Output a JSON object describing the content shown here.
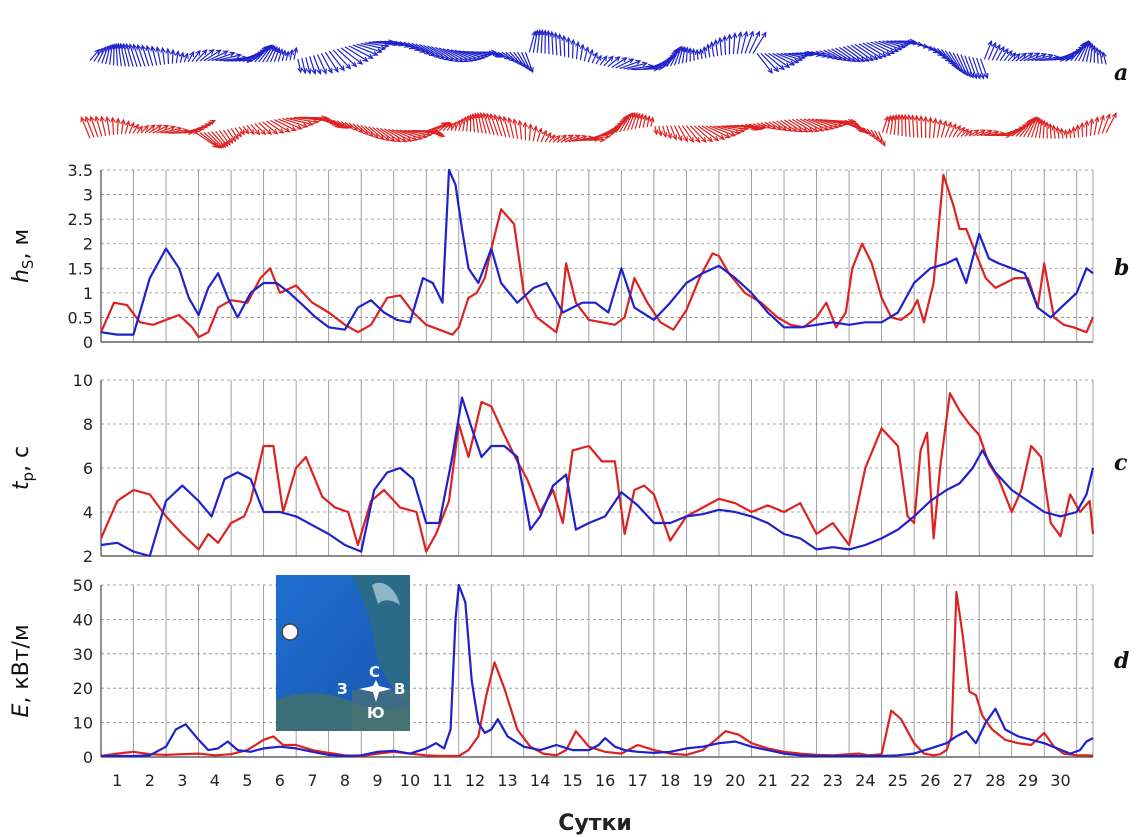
{
  "figure": {
    "panel_letters": [
      "a",
      "b",
      "c",
      "d"
    ],
    "inset": {
      "compass": {
        "n": "С",
        "s": "Ю",
        "w": "З",
        "e": "В"
      }
    }
  },
  "colors": {
    "series_red": "#dd2222",
    "series_blue": "#1f22cc",
    "grid": "#888888",
    "axis": "#555555"
  },
  "chart_data": [
    {
      "type": "quiver",
      "panel": "a",
      "title": "",
      "series": [
        {
          "name": "blue",
          "color": "#1f22cc",
          "note": "wave direction vectors over 30 days"
        },
        {
          "name": "red",
          "color": "#dd2222",
          "note": "wave direction vectors over 30 days"
        }
      ]
    },
    {
      "type": "line",
      "panel": "b",
      "ylabel": "hs, м",
      "ylabel_main": "h",
      "ylabel_sub": "S",
      "ylabel_unit": ", м",
      "ylim": [
        0,
        3.5
      ],
      "yticks": [
        "0",
        "0.5",
        "1",
        "1.5",
        "2",
        "2.5",
        "3",
        "3.5"
      ],
      "series": [
        {
          "name": "red",
          "color": "#dd2222",
          "x": [
            0,
            0.4,
            0.8,
            1.2,
            1.6,
            2.0,
            2.4,
            2.8,
            3.0,
            3.3,
            3.6,
            4.0,
            4.5,
            4.9,
            5.2,
            5.5,
            6.0,
            6.5,
            7.0,
            7.5,
            7.9,
            8.3,
            8.8,
            9.2,
            9.6,
            10.0,
            10.4,
            10.8,
            11.0,
            11.3,
            11.55,
            11.8,
            12.0,
            12.3,
            12.7,
            13.0,
            13.4,
            13.8,
            14.0,
            14.15,
            14.3,
            14.6,
            15.0,
            15.4,
            15.8,
            16.1,
            16.4,
            16.8,
            17.2,
            17.6,
            18.0,
            18.4,
            18.8,
            19.0,
            19.3,
            19.8,
            20.3,
            20.8,
            21.2,
            21.6,
            22.0,
            22.3,
            22.6,
            22.9,
            23.1,
            23.4,
            23.7,
            24.0,
            24.3,
            24.6,
            24.9,
            25.1,
            25.3,
            25.6,
            25.9,
            26.2,
            26.4,
            26.6,
            26.9,
            27.2,
            27.5,
            27.8,
            28.1,
            28.5,
            28.8,
            29.0,
            29.3,
            29.6,
            29.9,
            30.3,
            30.5
          ],
          "values": [
            0.2,
            0.8,
            0.75,
            0.4,
            0.35,
            0.45,
            0.55,
            0.3,
            0.1,
            0.2,
            0.7,
            0.85,
            0.8,
            1.3,
            1.5,
            1.0,
            1.15,
            0.8,
            0.6,
            0.35,
            0.2,
            0.35,
            0.9,
            0.95,
            0.6,
            0.35,
            0.25,
            0.15,
            0.3,
            0.9,
            1.0,
            1.3,
            1.9,
            2.7,
            2.4,
            1.0,
            0.5,
            0.3,
            0.2,
            0.6,
            1.6,
            0.8,
            0.45,
            0.4,
            0.35,
            0.5,
            1.3,
            0.8,
            0.4,
            0.25,
            0.65,
            1.3,
            1.8,
            1.75,
            1.4,
            1.0,
            0.8,
            0.5,
            0.35,
            0.3,
            0.5,
            0.8,
            0.3,
            0.6,
            1.5,
            2.0,
            1.6,
            0.9,
            0.5,
            0.45,
            0.6,
            0.85,
            0.4,
            1.2,
            3.4,
            2.8,
            2.3,
            2.3,
            1.8,
            1.3,
            1.1,
            1.2,
            1.3,
            1.3,
            0.7,
            1.6,
            0.5,
            0.35,
            0.3,
            0.2,
            0.5
          ]
        },
        {
          "name": "blue",
          "color": "#1f22cc",
          "x": [
            0,
            0.5,
            1.0,
            1.5,
            2.0,
            2.4,
            2.7,
            3.0,
            3.3,
            3.6,
            3.9,
            4.2,
            4.6,
            5.0,
            5.4,
            5.8,
            6.2,
            6.6,
            7.0,
            7.5,
            7.9,
            8.3,
            8.7,
            9.1,
            9.5,
            9.9,
            10.2,
            10.5,
            10.7,
            10.9,
            11.1,
            11.3,
            11.6,
            12.0,
            12.3,
            12.8,
            13.3,
            13.7,
            14.2,
            14.8,
            15.2,
            15.6,
            16.0,
            16.4,
            17.0,
            17.5,
            18.0,
            18.5,
            19.0,
            19.5,
            20.0,
            20.5,
            21.0,
            21.5,
            22.0,
            22.5,
            23.0,
            23.5,
            24.0,
            24.5,
            25.0,
            25.5,
            26.0,
            26.3,
            26.6,
            27.0,
            27.3,
            27.6,
            28.0,
            28.4,
            28.8,
            29.2,
            29.6,
            30.0,
            30.3,
            30.5
          ],
          "values": [
            0.2,
            0.15,
            0.15,
            1.3,
            1.9,
            1.5,
            0.9,
            0.55,
            1.1,
            1.4,
            0.9,
            0.5,
            1.0,
            1.2,
            1.2,
            1.0,
            0.75,
            0.5,
            0.3,
            0.25,
            0.7,
            0.85,
            0.6,
            0.45,
            0.4,
            1.3,
            1.2,
            0.8,
            3.5,
            3.2,
            2.3,
            1.5,
            1.2,
            1.9,
            1.2,
            0.8,
            1.1,
            1.2,
            0.6,
            0.8,
            0.8,
            0.6,
            1.5,
            0.7,
            0.45,
            0.8,
            1.2,
            1.4,
            1.55,
            1.3,
            1.0,
            0.6,
            0.3,
            0.3,
            0.35,
            0.4,
            0.35,
            0.4,
            0.4,
            0.6,
            1.2,
            1.5,
            1.6,
            1.7,
            1.2,
            2.2,
            1.7,
            1.6,
            1.5,
            1.4,
            0.7,
            0.5,
            0.75,
            1.0,
            1.5,
            1.4
          ]
        }
      ]
    },
    {
      "type": "line",
      "panel": "c",
      "ylabel": "tp, с",
      "ylabel_main": "t",
      "ylabel_sub": "p",
      "ylabel_unit": ", с",
      "ylim": [
        2,
        10
      ],
      "yticks": [
        "2",
        "4",
        "6",
        "8",
        "10"
      ],
      "series": [
        {
          "name": "red",
          "color": "#dd2222",
          "x": [
            0,
            0.5,
            1.0,
            1.5,
            2.0,
            2.5,
            3.0,
            3.3,
            3.6,
            4.0,
            4.4,
            4.6,
            5.0,
            5.3,
            5.6,
            6.0,
            6.3,
            6.8,
            7.2,
            7.6,
            7.9,
            8.3,
            8.7,
            9.2,
            9.7,
            10.0,
            10.3,
            10.7,
            11.0,
            11.3,
            11.7,
            12.0,
            12.4,
            12.8,
            13.1,
            13.5,
            13.9,
            14.2,
            14.5,
            15.0,
            15.4,
            15.8,
            16.1,
            16.4,
            16.7,
            17.0,
            17.5,
            18.0,
            18.5,
            19.0,
            19.5,
            20.0,
            20.5,
            21.0,
            21.5,
            22.0,
            22.5,
            23.0,
            23.5,
            24.0,
            24.5,
            24.8,
            25.0,
            25.2,
            25.4,
            25.6,
            25.8,
            26.1,
            26.4,
            26.7,
            27.0,
            27.3,
            27.6,
            28.0,
            28.3,
            28.6,
            28.9,
            29.2,
            29.5,
            29.8,
            30.1,
            30.4,
            30.5
          ],
          "values": [
            2.8,
            4.5,
            5.0,
            4.8,
            3.8,
            3.0,
            2.3,
            3.0,
            2.6,
            3.5,
            3.8,
            4.5,
            7.0,
            7.0,
            4.0,
            6.0,
            6.5,
            4.7,
            4.2,
            4.0,
            2.5,
            4.5,
            5.0,
            4.2,
            4.0,
            2.2,
            3.0,
            4.5,
            8.0,
            6.5,
            9.0,
            8.8,
            7.5,
            6.3,
            5.5,
            4.0,
            5.0,
            3.5,
            6.8,
            7.0,
            6.3,
            6.3,
            3.0,
            5.0,
            5.2,
            4.8,
            2.7,
            3.8,
            4.2,
            4.6,
            4.4,
            4.0,
            4.3,
            4.0,
            4.4,
            3.0,
            3.5,
            2.5,
            6.0,
            7.8,
            7.0,
            3.8,
            3.5,
            6.8,
            7.6,
            2.8,
            6.0,
            9.4,
            8.6,
            8.0,
            7.5,
            6.2,
            5.5,
            4.0,
            5.0,
            7.0,
            6.5,
            3.5,
            2.9,
            4.8,
            4.0,
            4.5,
            3.0
          ]
        },
        {
          "name": "blue",
          "color": "#1f22cc",
          "x": [
            0,
            0.5,
            1.0,
            1.5,
            2.0,
            2.5,
            3.0,
            3.4,
            3.8,
            4.2,
            4.6,
            5.0,
            5.5,
            6.0,
            6.5,
            7.0,
            7.5,
            8.0,
            8.4,
            8.8,
            9.2,
            9.6,
            10.0,
            10.4,
            10.8,
            11.1,
            11.4,
            11.7,
            12.0,
            12.4,
            12.8,
            13.2,
            13.5,
            13.9,
            14.3,
            14.6,
            15.0,
            15.5,
            16.0,
            16.5,
            17.0,
            17.5,
            18.0,
            18.5,
            19.0,
            19.5,
            20.0,
            20.5,
            21.0,
            21.5,
            22.0,
            22.5,
            23.0,
            23.5,
            24.0,
            24.5,
            25.0,
            25.5,
            26.0,
            26.4,
            26.8,
            27.1,
            27.5,
            28.0,
            28.5,
            29.0,
            29.5,
            30.0,
            30.3,
            30.5
          ],
          "values": [
            2.5,
            2.6,
            2.2,
            2.0,
            4.5,
            5.2,
            4.5,
            3.8,
            5.5,
            5.8,
            5.5,
            4.0,
            4.0,
            3.8,
            3.4,
            3.0,
            2.5,
            2.2,
            5.0,
            5.8,
            6.0,
            5.5,
            3.5,
            3.5,
            6.5,
            9.2,
            7.8,
            6.5,
            7.0,
            7.0,
            6.5,
            3.2,
            3.8,
            5.2,
            5.7,
            3.2,
            3.5,
            3.8,
            4.9,
            4.3,
            3.5,
            3.5,
            3.8,
            3.9,
            4.1,
            4.0,
            3.8,
            3.5,
            3.0,
            2.8,
            2.3,
            2.4,
            2.3,
            2.5,
            2.8,
            3.2,
            3.8,
            4.5,
            5.0,
            5.3,
            6.0,
            6.8,
            5.8,
            5.0,
            4.5,
            4.0,
            3.8,
            4.0,
            4.8,
            6.0
          ]
        }
      ]
    },
    {
      "type": "line",
      "panel": "d",
      "ylabel": "E, кВт/м",
      "ylabel_main": "E",
      "ylabel_unit": ", кВт/м",
      "ylim": [
        0,
        50
      ],
      "yticks": [
        "0",
        "10",
        "20",
        "30",
        "40",
        "50"
      ],
      "xlabel": "Сутки",
      "xticks": [
        "1",
        "2",
        "3",
        "4",
        "5",
        "6",
        "7",
        "8",
        "9",
        "10",
        "11",
        "12",
        "13",
        "14",
        "15",
        "16",
        "17",
        "18",
        "19",
        "20",
        "21",
        "22",
        "23",
        "24",
        "25",
        "26",
        "27",
        "28",
        "29",
        "30"
      ],
      "series": [
        {
          "name": "red",
          "color": "#dd2222",
          "x": [
            0,
            0.5,
            1.0,
            1.5,
            2.0,
            2.5,
            3.0,
            3.5,
            4.0,
            4.5,
            5.0,
            5.3,
            5.6,
            6.0,
            6.5,
            7.0,
            7.5,
            8.0,
            8.5,
            9.0,
            9.5,
            10.0,
            10.5,
            11.0,
            11.3,
            11.6,
            11.85,
            12.1,
            12.4,
            12.8,
            13.2,
            13.6,
            14.0,
            14.3,
            14.6,
            15.0,
            15.5,
            16.0,
            16.5,
            17.0,
            17.5,
            18.0,
            18.5,
            18.9,
            19.2,
            19.6,
            20.0,
            20.5,
            21.0,
            21.5,
            22.0,
            22.5,
            23.0,
            23.3,
            23.6,
            24.0,
            24.3,
            24.6,
            25.0,
            25.3,
            25.6,
            25.8,
            26.0,
            26.15,
            26.3,
            26.5,
            26.7,
            26.9,
            27.1,
            27.4,
            27.8,
            28.2,
            28.6,
            29.0,
            29.3,
            29.6,
            30.0,
            30.3,
            30.5
          ],
          "values": [
            0.3,
            1.0,
            1.5,
            0.8,
            0.6,
            0.8,
            1.0,
            0.5,
            0.8,
            2.0,
            5.0,
            6.0,
            3.5,
            3.5,
            2.0,
            1.2,
            0.5,
            0.3,
            1.0,
            1.5,
            1.0,
            0.5,
            0.3,
            0.3,
            2.0,
            6.0,
            18.0,
            27.5,
            20.0,
            8.0,
            3.0,
            1.0,
            0.5,
            2.0,
            7.5,
            3.0,
            1.5,
            1.0,
            3.5,
            2.0,
            1.0,
            0.6,
            2.0,
            5.0,
            7.5,
            6.5,
            4.0,
            2.5,
            1.5,
            1.0,
            0.6,
            0.5,
            0.8,
            1.0,
            0.5,
            0.8,
            13.5,
            11.0,
            4.0,
            1.0,
            0.5,
            0.8,
            2.0,
            6.0,
            48.0,
            35.0,
            19.0,
            18.0,
            12.0,
            8.0,
            5.0,
            4.0,
            3.5,
            7.0,
            3.0,
            1.0,
            0.5,
            0.5,
            0.4
          ]
        },
        {
          "name": "blue",
          "color": "#1f22cc",
          "x": [
            0,
            0.5,
            1.0,
            1.5,
            2.0,
            2.3,
            2.6,
            3.0,
            3.3,
            3.6,
            3.9,
            4.2,
            4.6,
            5.0,
            5.5,
            6.0,
            6.5,
            7.0,
            7.5,
            8.0,
            8.5,
            9.0,
            9.5,
            10.0,
            10.3,
            10.55,
            10.75,
            10.9,
            11.0,
            11.2,
            11.4,
            11.6,
            11.8,
            12.0,
            12.2,
            12.5,
            13.0,
            13.5,
            14.0,
            14.5,
            15.0,
            15.3,
            15.5,
            15.8,
            16.1,
            16.5,
            17.0,
            17.5,
            18.0,
            18.5,
            19.0,
            19.5,
            20.0,
            20.5,
            21.0,
            21.5,
            22.0,
            22.5,
            23.0,
            23.5,
            24.0,
            24.5,
            25.0,
            25.5,
            26.0,
            26.3,
            26.6,
            26.9,
            27.2,
            27.5,
            27.8,
            28.2,
            28.6,
            29.0,
            29.4,
            29.8,
            30.1,
            30.3,
            30.5
          ],
          "values": [
            0.3,
            0.3,
            0.3,
            0.5,
            3.0,
            8.0,
            9.5,
            5.0,
            2.0,
            2.5,
            4.5,
            2.0,
            1.5,
            2.5,
            3.0,
            2.5,
            1.5,
            0.6,
            0.3,
            0.5,
            1.5,
            1.8,
            1.0,
            2.5,
            4.0,
            2.5,
            8.0,
            40.0,
            50.0,
            45.0,
            22.0,
            10.0,
            7.0,
            8.0,
            11.0,
            6.0,
            3.0,
            2.0,
            3.5,
            2.0,
            2.0,
            3.5,
            5.5,
            3.0,
            2.0,
            1.5,
            1.2,
            1.5,
            2.5,
            3.0,
            4.0,
            4.5,
            3.0,
            2.0,
            1.0,
            0.5,
            0.3,
            0.3,
            0.3,
            0.3,
            0.3,
            0.5,
            1.0,
            2.5,
            4.0,
            6.0,
            7.5,
            4.0,
            10.0,
            14.0,
            8.0,
            6.0,
            5.0,
            4.0,
            2.5,
            1.0,
            2.0,
            4.5,
            5.5
          ]
        }
      ]
    }
  ]
}
